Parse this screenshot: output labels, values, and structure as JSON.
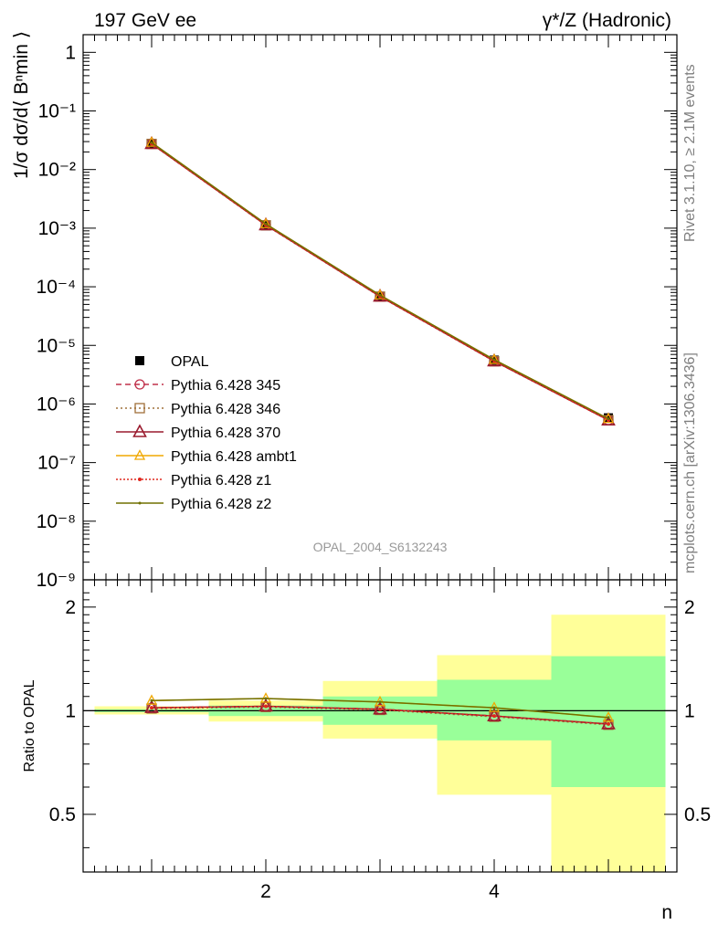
{
  "header": {
    "left": "197 GeV ee",
    "right": "γ*/Z (Hadronic)"
  },
  "side_labels": {
    "rivet": "Rivet 3.1.10, ≥ 2.1M events",
    "url": "mcplots.cern.ch [arXiv:1306.3436]"
  },
  "watermark": "OPAL_2004_S6132243",
  "colors": {
    "opal": "#000000",
    "p345": "#c0304a",
    "p346": "#a0703a",
    "p370": "#9a1b2e",
    "ambt1": "#f0a800",
    "z1": "#e0281e",
    "z2": "#707000",
    "band_inner": "#99ff99",
    "band_outer": "#ffff99"
  },
  "chart_data": [
    {
      "type": "line",
      "panel": "main",
      "ylabel": "1/σ dσ/d⟨ Bⁿmin ⟩",
      "yscale": "log",
      "ylim": [
        1e-09,
        2
      ],
      "xlim": [
        0.4,
        5.6
      ],
      "y_ticks": [
        "1",
        "10⁻¹",
        "10⁻²",
        "10⁻³",
        "10⁻⁴",
        "10⁻⁵",
        "10⁻⁶",
        "10⁻⁷",
        "10⁻⁸",
        "10⁻⁹"
      ],
      "legend_position": "center-left",
      "x": [
        1,
        2,
        3,
        4,
        5
      ],
      "series": [
        {
          "name": "OPAL",
          "key": "opal",
          "values": [
            0.027,
            0.0011,
            6.8e-05,
            5.6e-06,
            5.8e-07
          ]
        },
        {
          "name": "Pythia 6.428 345",
          "key": "p345",
          "values": [
            0.0275,
            0.00113,
            6.85e-05,
            5.4e-06,
            5.3e-07
          ]
        },
        {
          "name": "Pythia 6.428 346",
          "key": "p346",
          "values": [
            0.0274,
            0.00112,
            6.8e-05,
            5.35e-06,
            5.3e-07
          ]
        },
        {
          "name": "Pythia 6.428 370",
          "key": "p370",
          "values": [
            0.0275,
            0.00113,
            6.85e-05,
            5.4e-06,
            5.3e-07
          ]
        },
        {
          "name": "Pythia 6.428 ambt1",
          "key": "ambt1",
          "values": [
            0.0289,
            0.00118,
            7.2e-05,
            5.7e-06,
            5.6e-07
          ]
        },
        {
          "name": "Pythia 6.428 z1",
          "key": "z1",
          "values": [
            0.0275,
            0.00113,
            6.85e-05,
            5.4e-06,
            5.3e-07
          ]
        },
        {
          "name": "Pythia 6.428 z2",
          "key": "z2",
          "values": [
            0.0289,
            0.00118,
            7.2e-05,
            5.7e-06,
            5.6e-07
          ]
        }
      ]
    },
    {
      "type": "line",
      "panel": "ratio",
      "ylabel": "Ratio to OPAL",
      "xlabel": "n",
      "yscale": "log",
      "ylim": [
        0.34,
        2.4
      ],
      "xlim": [
        0.4,
        5.6
      ],
      "x_ticks": [
        "2",
        "4"
      ],
      "y_ticks": [
        "0.5",
        "1",
        "2"
      ],
      "bands": [
        {
          "x_from": 0.5,
          "x_to": 1.5,
          "inner": [
            0.99,
            1.01
          ],
          "outer": [
            0.975,
            1.03
          ]
        },
        {
          "x_from": 1.5,
          "x_to": 2.5,
          "inner": [
            0.965,
            1.035
          ],
          "outer": [
            0.93,
            1.07
          ]
        },
        {
          "x_from": 2.5,
          "x_to": 3.5,
          "inner": [
            0.91,
            1.1
          ],
          "outer": [
            0.83,
            1.22
          ]
        },
        {
          "x_from": 3.5,
          "x_to": 4.5,
          "inner": [
            0.82,
            1.23
          ],
          "outer": [
            0.57,
            1.45
          ]
        },
        {
          "x_from": 4.5,
          "x_to": 5.5,
          "inner": [
            0.6,
            1.44
          ],
          "outer": [
            0.34,
            1.9
          ]
        }
      ],
      "x": [
        1,
        2,
        3,
        4,
        5
      ],
      "series": [
        {
          "name": "Pythia 6.428 345",
          "key": "p345",
          "values": [
            1.02,
            1.03,
            1.01,
            0.965,
            0.915
          ]
        },
        {
          "name": "Pythia 6.428 346",
          "key": "p346",
          "values": [
            1.015,
            1.025,
            1.005,
            0.96,
            0.91
          ]
        },
        {
          "name": "Pythia 6.428 370",
          "key": "p370",
          "values": [
            1.02,
            1.03,
            1.01,
            0.965,
            0.915
          ]
        },
        {
          "name": "Pythia 6.428 ambt1",
          "key": "ambt1",
          "values": [
            1.07,
            1.085,
            1.06,
            1.02,
            0.955
          ]
        },
        {
          "name": "Pythia 6.428 z1",
          "key": "z1",
          "values": [
            1.02,
            1.03,
            1.01,
            0.965,
            0.915
          ]
        },
        {
          "name": "Pythia 6.428 z2",
          "key": "z2",
          "values": [
            1.07,
            1.085,
            1.06,
            1.02,
            0.955
          ]
        }
      ]
    }
  ]
}
